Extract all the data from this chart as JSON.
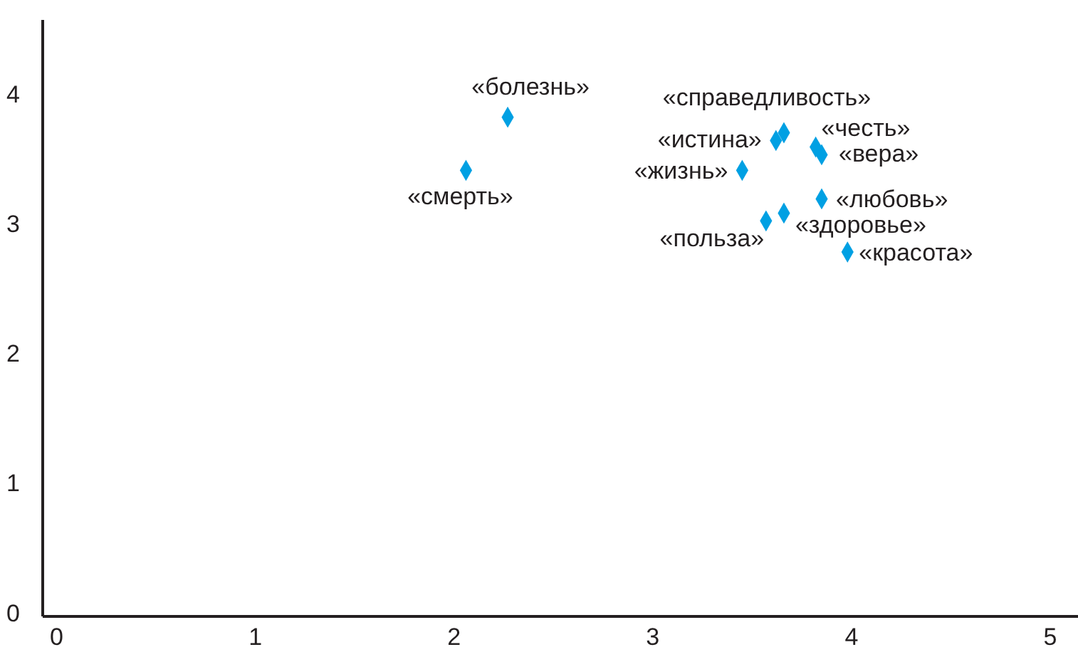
{
  "chart_data": {
    "type": "scatter",
    "marker": "diamond",
    "grid": false,
    "xlim": [
      -0.07,
      5.14
    ],
    "xticks": [
      0,
      1,
      2,
      3,
      4,
      5
    ],
    "ylim": [
      -0.03,
      4.57
    ],
    "yticks": [
      0,
      1,
      2,
      3,
      4
    ],
    "series": [
      {
        "color": "#00a0e3",
        "x": [
          2.27,
          2.06,
          3.66,
          3.62,
          3.82,
          3.85,
          3.45,
          3.85,
          3.66,
          3.57,
          3.98
        ],
        "values": [
          3.82,
          3.41,
          3.7,
          3.64,
          3.59,
          3.53,
          3.41,
          3.19,
          3.08,
          3.02,
          2.78
        ]
      }
    ],
    "annotations": [
      {
        "text": "«болезнь»",
        "x": 2.27,
        "y": 3.82
      },
      {
        "text": "«смерть»",
        "x": 2.06,
        "y": 3.41
      },
      {
        "text": "«справедливость»",
        "x": 3.66,
        "y": 3.7
      },
      {
        "text": "«истина»",
        "x": 3.62,
        "y": 3.64
      },
      {
        "text": "«честь»",
        "x": 3.82,
        "y": 3.59
      },
      {
        "text": "«вера»",
        "x": 3.85,
        "y": 3.53
      },
      {
        "text": "«жизнь»",
        "x": 3.45,
        "y": 3.41
      },
      {
        "text": "«любовь»",
        "x": 3.85,
        "y": 3.19
      },
      {
        "text": "«здоровье»",
        "x": 3.66,
        "y": 3.08
      },
      {
        "text": "«польза»",
        "x": 3.57,
        "y": 3.02
      },
      {
        "text": "«красота»",
        "x": 3.98,
        "y": 2.78
      }
    ]
  }
}
